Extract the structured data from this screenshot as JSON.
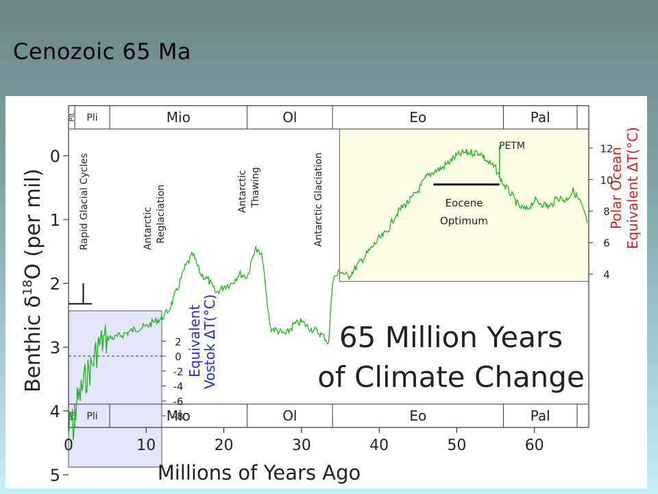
{
  "slide": {
    "title": "Cenozoic 65 Ma"
  },
  "colors": {
    "curve": "#22b022",
    "vostok_axis": "#1f2bd6",
    "polar_axis": "#d42020",
    "vostok_box": "#e4e6fb",
    "polar_box": "#fbfbe6"
  },
  "chart_data": {
    "type": "line",
    "title": "65 Million Years of Climate Change",
    "title_lines": [
      "65 Million Years",
      "of Climate Change"
    ],
    "xlabel": "Millions of Years Ago",
    "ylabel": {
      "main": "Benthic δ",
      "sup": "18",
      "rest": "O (per mil)"
    },
    "xlim": [
      0,
      67
    ],
    "ylim": [
      5,
      -0.3
    ],
    "x_ticks": [
      0,
      10,
      20,
      30,
      40,
      50,
      60
    ],
    "y_ticks": [
      0,
      1,
      2,
      3,
      4,
      5
    ],
    "epochs": [
      {
        "label": "Plt",
        "start": 0,
        "end": 0.8
      },
      {
        "label": "Pli",
        "start": 0.8,
        "end": 5.3
      },
      {
        "label": "Mio",
        "start": 5.3,
        "end": 23
      },
      {
        "label": "Ol",
        "start": 23,
        "end": 34
      },
      {
        "label": "Eo",
        "start": 34,
        "end": 56
      },
      {
        "label": "Pal",
        "start": 56,
        "end": 65.5
      }
    ],
    "vostok_axis": {
      "label_lines": [
        "Equivalent",
        "Vostok ΔT(°C)"
      ],
      "ticks": [
        2,
        0,
        -2,
        -4,
        -6,
        -8
      ],
      "zero_at_d18O": 3.14,
      "d18O_per_degree": 0.117
    },
    "polar_axis": {
      "label_lines": [
        "Polar Ocean",
        "Equivalent ΔT(°C)"
      ],
      "ticks": [
        12,
        10,
        8,
        6,
        4
      ],
      "value_12_at_d18O": -0.12,
      "d18O_per_degree": 0.247
    },
    "annotations": [
      {
        "text": "Rapid Glacial Cycles",
        "x": 1.7
      },
      {
        "text": "Antarctic",
        "x": 10.5
      },
      {
        "text": "Reglaciation",
        "x": 12.0
      },
      {
        "text": "Antarctic",
        "x": 23.3
      },
      {
        "text": "Thawing",
        "x": 24.8
      },
      {
        "text": "Antarctic Glaciation",
        "x": 33.6
      },
      {
        "text": "PETM",
        "x": 55.5
      },
      {
        "text": "Eocene",
        "x": 51
      },
      {
        "text": "Optimum",
        "x": 51
      }
    ],
    "eocene_optimum": {
      "start": 47,
      "end": 55.5,
      "d18O": 0.45
    },
    "petm": {
      "x": 55.5,
      "d18O": -0.15
    },
    "series": [
      {
        "x": [
          0,
          0.3,
          0.7,
          1.0,
          1.5,
          2.0,
          2.5,
          3.0,
          3.5,
          4.0,
          5.0,
          6.0,
          7.0,
          8.0,
          9.0,
          10,
          11,
          12,
          13,
          14,
          15,
          15.5,
          16,
          17,
          18,
          19,
          20,
          21,
          22,
          23,
          23.5,
          24,
          25,
          25.5,
          26,
          27,
          28,
          29,
          30,
          31,
          32,
          33,
          33.5,
          34,
          35,
          36,
          37,
          38,
          39,
          40,
          41,
          42,
          43,
          44,
          45,
          46,
          47,
          48,
          49,
          50,
          51,
          52,
          53,
          54,
          55,
          56,
          57,
          58,
          59,
          60,
          61,
          62,
          63,
          64,
          65,
          66,
          66.8
        ],
        "values": [
          4.35,
          4.1,
          4.3,
          3.9,
          3.75,
          3.55,
          3.4,
          3.3,
          3.1,
          2.95,
          2.85,
          2.85,
          2.8,
          2.75,
          2.7,
          2.68,
          2.6,
          2.55,
          2.4,
          2.1,
          1.75,
          1.65,
          1.55,
          1.85,
          1.95,
          2.15,
          2.05,
          2.0,
          1.85,
          1.9,
          1.7,
          1.45,
          1.6,
          2.25,
          2.7,
          2.75,
          2.8,
          2.65,
          2.6,
          2.7,
          2.75,
          2.85,
          2.95,
          1.95,
          1.8,
          1.9,
          1.75,
          1.6,
          1.45,
          1.3,
          1.2,
          0.95,
          0.8,
          0.7,
          0.55,
          0.35,
          0.25,
          0.2,
          0.1,
          0.0,
          -0.05,
          -0.05,
          -0.05,
          0.1,
          0.2,
          0.45,
          0.6,
          0.8,
          0.85,
          0.7,
          0.75,
          0.8,
          0.65,
          0.7,
          0.55,
          0.75,
          1.05
        ]
      }
    ]
  }
}
